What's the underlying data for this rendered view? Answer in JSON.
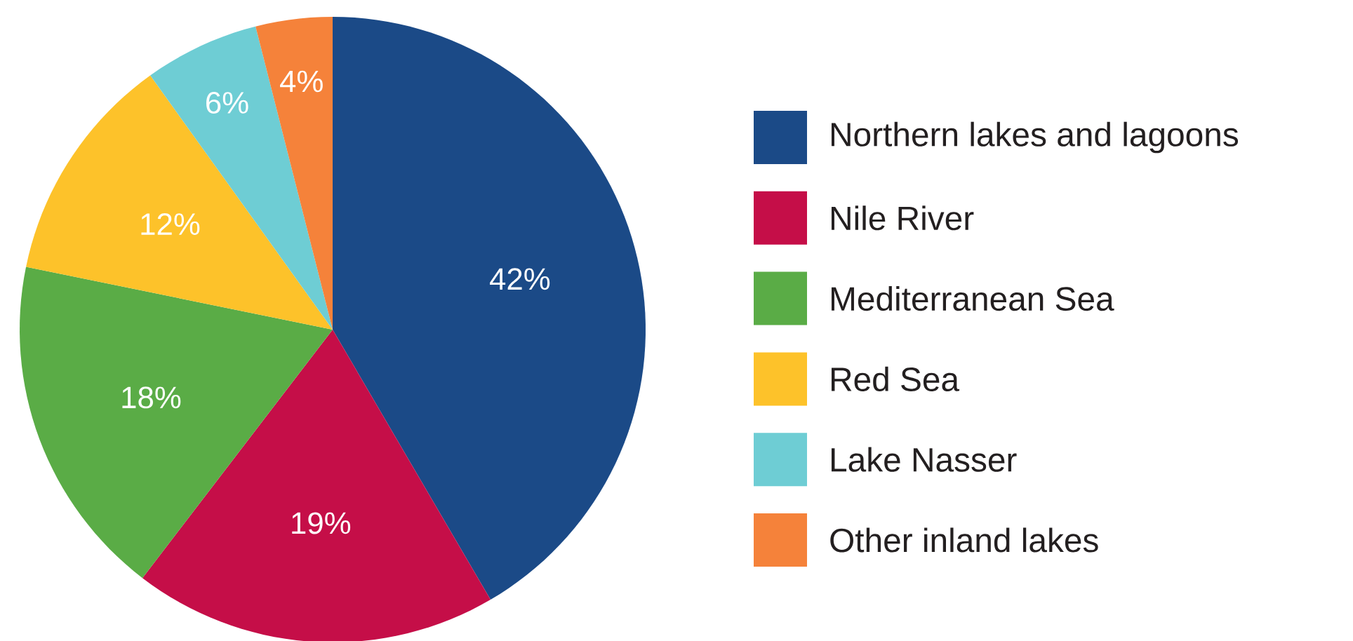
{
  "chart_data": {
    "type": "pie",
    "categories": [
      "Northern lakes and lagoons",
      "Nile River",
      "Mediterranean Sea",
      "Red Sea",
      "Lake Nasser",
      "Other inland lakes"
    ],
    "values": [
      42,
      19,
      18,
      12,
      6,
      4
    ],
    "value_labels": [
      "42%",
      "19%",
      "18%",
      "12%",
      "6%",
      "4%"
    ],
    "colors": [
      "#1b4a87",
      "#c50e48",
      "#5aac46",
      "#fdc22a",
      "#6ecdd4",
      "#f5823a"
    ],
    "legend": "right"
  }
}
